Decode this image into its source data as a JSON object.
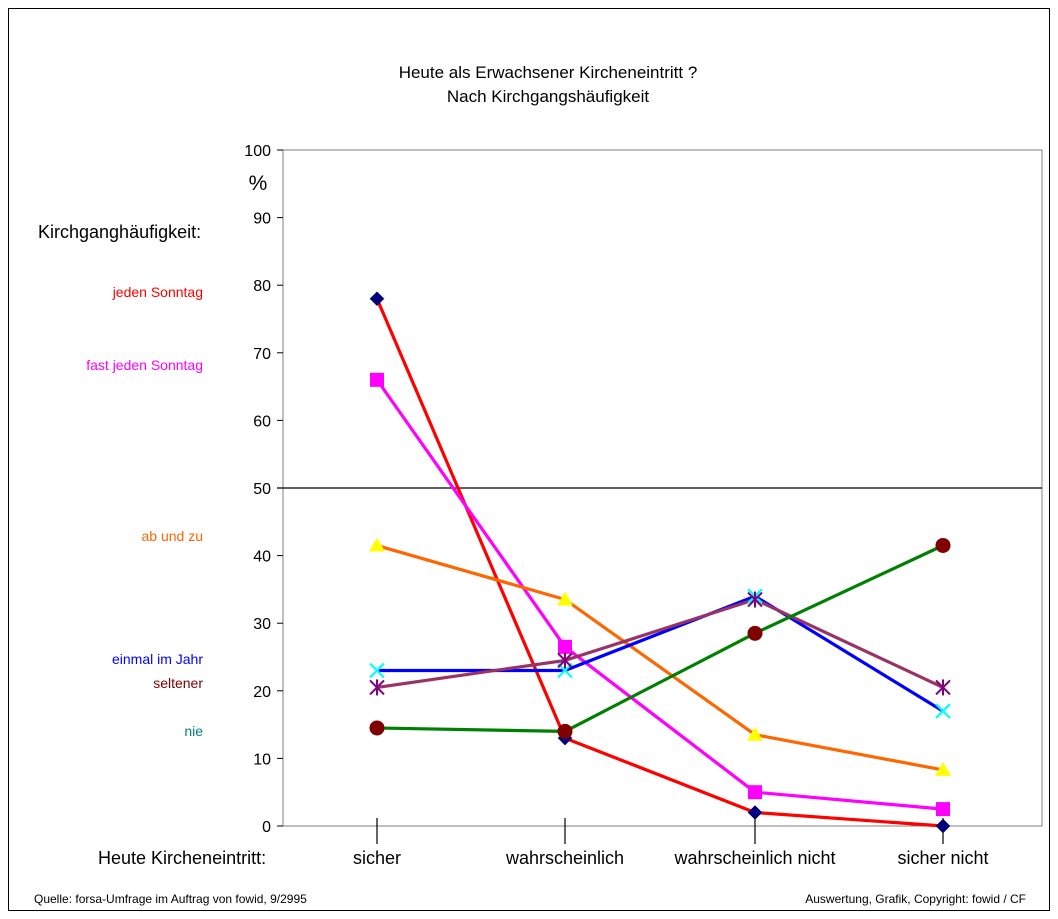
{
  "chart_data": {
    "type": "line",
    "title": "Heute als Erwachsener Kircheneintritt ?",
    "subtitle": "Nach Kirchgangshäufigkeit",
    "ylabel": "%",
    "ylim": [
      0,
      100
    ],
    "yticks": [
      "0",
      "10",
      "20",
      "30",
      "40",
      "50",
      "60",
      "70",
      "80",
      "90",
      "100"
    ],
    "reference_line": 50,
    "xaxis_caption": "Heute Kircheneintritt:",
    "categories": [
      "sicher",
      "wahrscheinlich",
      "wahrscheinlich nicht",
      "sicher nicht"
    ],
    "legend_title": "Kirchganghäufigkeit:",
    "series": [
      {
        "name": "jeden Sonntag",
        "values": [
          78,
          13,
          2,
          0
        ],
        "line_color": "#ff0000",
        "marker": "diamond",
        "marker_color": "#000080",
        "label_color": "#ff0000"
      },
      {
        "name": "fast jeden Sonntag",
        "values": [
          66,
          26.5,
          5,
          2.5
        ],
        "line_color": "#ff00ff",
        "marker": "square",
        "marker_color": "#ff00ff",
        "label_color": "#ff00ff"
      },
      {
        "name": "ab und zu",
        "values": [
          41.5,
          33.5,
          13.5,
          8.3
        ],
        "line_color": "#ff6600",
        "marker": "triangle",
        "marker_color": "#ffff00",
        "label_color": "#ff6600"
      },
      {
        "name": "einmal im Jahr",
        "values": [
          23,
          23,
          34,
          17
        ],
        "line_color": "#0000ff",
        "marker": "x",
        "marker_color": "#00ffff",
        "label_color": "#0000ff"
      },
      {
        "name": "seltener",
        "values": [
          20.5,
          24.5,
          33.5,
          20.5
        ],
        "line_color": "#993366",
        "marker": "star",
        "marker_color": "#800080",
        "label_color": "#800000"
      },
      {
        "name": "nie",
        "values": [
          14.5,
          14,
          28.5,
          41.5
        ],
        "line_color": "#008000",
        "marker": "circle",
        "marker_color": "#800000",
        "label_color": "#008080"
      }
    ],
    "grid": false,
    "legend_position": "left"
  },
  "footer": {
    "source": "Quelle: forsa-Umfrage im Auftrag von fowid, 9/2995",
    "credit": "Auswertung, Grafik, Copyright: fowid / CF"
  }
}
